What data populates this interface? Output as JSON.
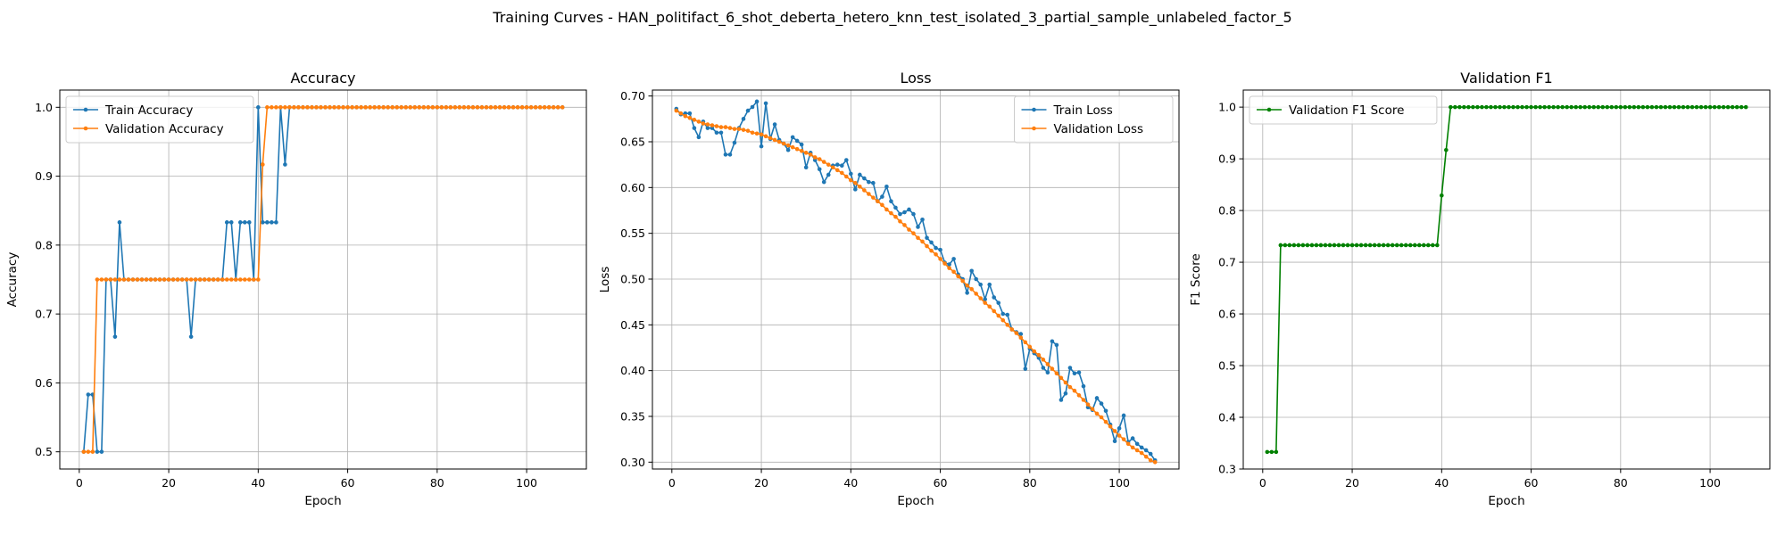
{
  "figure_title": "Training Curves - HAN_politifact_6_shot_deberta_hetero_knn_test_isolated_3_partial_sample_unlabeled_factor_5",
  "colors": {
    "train": "#1f77b4",
    "validation": "#ff7f0e",
    "f1": "#008000"
  },
  "chart_data": [
    {
      "type": "line",
      "title": "Accuracy",
      "xlabel": "Epoch",
      "ylabel": "Accuracy",
      "xlim": [
        -4.35,
        113.35
      ],
      "ylim": [
        0.475,
        1.025
      ],
      "xticks": [
        0,
        20,
        40,
        60,
        80,
        100
      ],
      "yticks": [
        0.5,
        0.6,
        0.7,
        0.8,
        0.9,
        1.0
      ],
      "ytick_decimals": 1,
      "grid": true,
      "legend": "upper left",
      "x_start": 1,
      "series": [
        {
          "name": "Train Accuracy",
          "color": "#1f77b4",
          "values": [
            0.5,
            0.583,
            0.583,
            0.5,
            0.5,
            0.75,
            0.75,
            0.667,
            0.833,
            0.75,
            0.75,
            0.75,
            0.75,
            0.75,
            0.75,
            0.75,
            0.75,
            0.75,
            0.75,
            0.75,
            0.75,
            0.75,
            0.75,
            0.75,
            0.667,
            0.75,
            0.75,
            0.75,
            0.75,
            0.75,
            0.75,
            0.75,
            0.833,
            0.833,
            0.75,
            0.833,
            0.833,
            0.833,
            0.75,
            1.0,
            0.833,
            0.833,
            0.833,
            0.833,
            1.0,
            0.917,
            1.0,
            1.0,
            1.0,
            1.0,
            1.0,
            1.0,
            1.0,
            1.0,
            1.0,
            1.0,
            1.0,
            1.0,
            1.0,
            1.0,
            1.0,
            1.0,
            1.0,
            1.0,
            1.0,
            1.0,
            1.0,
            1.0,
            1.0,
            1.0,
            1.0,
            1.0,
            1.0,
            1.0,
            1.0,
            1.0,
            1.0,
            1.0,
            1.0,
            1.0,
            1.0,
            1.0,
            1.0,
            1.0,
            1.0,
            1.0,
            1.0,
            1.0,
            1.0,
            1.0,
            1.0,
            1.0,
            1.0,
            1.0,
            1.0,
            1.0,
            1.0,
            1.0,
            1.0,
            1.0,
            1.0,
            1.0,
            1.0,
            1.0,
            1.0,
            1.0,
            1.0,
            1.0
          ]
        },
        {
          "name": "Validation Accuracy",
          "color": "#ff7f0e",
          "values": [
            0.5,
            0.5,
            0.5,
            0.75,
            0.75,
            0.75,
            0.75,
            0.75,
            0.75,
            0.75,
            0.75,
            0.75,
            0.75,
            0.75,
            0.75,
            0.75,
            0.75,
            0.75,
            0.75,
            0.75,
            0.75,
            0.75,
            0.75,
            0.75,
            0.75,
            0.75,
            0.75,
            0.75,
            0.75,
            0.75,
            0.75,
            0.75,
            0.75,
            0.75,
            0.75,
            0.75,
            0.75,
            0.75,
            0.75,
            0.75,
            0.917,
            1.0,
            1.0,
            1.0,
            1.0,
            1.0,
            1.0,
            1.0,
            1.0,
            1.0,
            1.0,
            1.0,
            1.0,
            1.0,
            1.0,
            1.0,
            1.0,
            1.0,
            1.0,
            1.0,
            1.0,
            1.0,
            1.0,
            1.0,
            1.0,
            1.0,
            1.0,
            1.0,
            1.0,
            1.0,
            1.0,
            1.0,
            1.0,
            1.0,
            1.0,
            1.0,
            1.0,
            1.0,
            1.0,
            1.0,
            1.0,
            1.0,
            1.0,
            1.0,
            1.0,
            1.0,
            1.0,
            1.0,
            1.0,
            1.0,
            1.0,
            1.0,
            1.0,
            1.0,
            1.0,
            1.0,
            1.0,
            1.0,
            1.0,
            1.0,
            1.0,
            1.0,
            1.0,
            1.0,
            1.0,
            1.0,
            1.0,
            1.0
          ]
        }
      ]
    },
    {
      "type": "line",
      "title": "Loss",
      "xlabel": "Epoch",
      "ylabel": "Loss",
      "xlim": [
        -4.35,
        113.35
      ],
      "ylim": [
        0.2925,
        0.7065
      ],
      "xticks": [
        0,
        20,
        40,
        60,
        80,
        100
      ],
      "yticks": [
        0.3,
        0.35,
        0.4,
        0.45,
        0.5,
        0.55,
        0.6,
        0.65,
        0.7
      ],
      "ytick_decimals": 2,
      "grid": true,
      "legend": "upper right",
      "x_start": 1,
      "series": [
        {
          "name": "Train Loss",
          "color": "#1f77b4",
          "values": [
            0.686,
            0.68,
            0.681,
            0.681,
            0.665,
            0.655,
            0.672,
            0.665,
            0.665,
            0.66,
            0.66,
            0.636,
            0.636,
            0.649,
            0.665,
            0.675,
            0.684,
            0.688,
            0.694,
            0.645,
            0.692,
            0.653,
            0.669,
            0.652,
            0.648,
            0.641,
            0.655,
            0.651,
            0.647,
            0.622,
            0.638,
            0.63,
            0.62,
            0.606,
            0.614,
            0.624,
            0.625,
            0.624,
            0.63,
            0.615,
            0.598,
            0.614,
            0.61,
            0.606,
            0.605,
            0.585,
            0.59,
            0.601,
            0.585,
            0.578,
            0.571,
            0.573,
            0.576,
            0.571,
            0.557,
            0.565,
            0.545,
            0.54,
            0.534,
            0.532,
            0.518,
            0.516,
            0.522,
            0.505,
            0.5,
            0.485,
            0.509,
            0.5,
            0.494,
            0.478,
            0.494,
            0.48,
            0.474,
            0.462,
            0.461,
            0.445,
            0.442,
            0.44,
            0.402,
            0.424,
            0.419,
            0.414,
            0.403,
            0.398,
            0.432,
            0.428,
            0.368,
            0.375,
            0.403,
            0.397,
            0.398,
            0.383,
            0.36,
            0.357,
            0.37,
            0.364,
            0.356,
            0.341,
            0.323,
            0.337,
            0.351,
            0.322,
            0.326,
            0.32,
            0.316,
            0.313,
            0.309,
            0.302
          ]
        },
        {
          "name": "Validation Loss",
          "color": "#ff7f0e",
          "values": [
            0.684,
            0.681,
            0.678,
            0.676,
            0.674,
            0.672,
            0.67,
            0.669,
            0.668,
            0.667,
            0.666,
            0.666,
            0.665,
            0.664,
            0.664,
            0.663,
            0.662,
            0.66,
            0.659,
            0.658,
            0.656,
            0.654,
            0.652,
            0.65,
            0.648,
            0.646,
            0.644,
            0.642,
            0.64,
            0.638,
            0.636,
            0.633,
            0.631,
            0.628,
            0.625,
            0.622,
            0.619,
            0.616,
            0.612,
            0.608,
            0.605,
            0.601,
            0.597,
            0.593,
            0.589,
            0.585,
            0.581,
            0.576,
            0.572,
            0.568,
            0.563,
            0.559,
            0.554,
            0.55,
            0.545,
            0.541,
            0.536,
            0.531,
            0.527,
            0.522,
            0.517,
            0.512,
            0.508,
            0.503,
            0.498,
            0.493,
            0.489,
            0.484,
            0.479,
            0.474,
            0.47,
            0.465,
            0.46,
            0.455,
            0.45,
            0.445,
            0.441,
            0.436,
            0.431,
            0.426,
            0.421,
            0.417,
            0.412,
            0.407,
            0.402,
            0.397,
            0.392,
            0.387,
            0.382,
            0.378,
            0.373,
            0.368,
            0.363,
            0.358,
            0.353,
            0.349,
            0.344,
            0.339,
            0.334,
            0.329,
            0.325,
            0.32,
            0.316,
            0.313,
            0.31,
            0.306,
            0.302,
            0.3
          ]
        }
      ]
    },
    {
      "type": "line",
      "title": "Validation F1",
      "xlabel": "Epoch",
      "ylabel": "F1 Score",
      "xlim": [
        -4.35,
        113.35
      ],
      "ylim": [
        0.3,
        1.033
      ],
      "xticks": [
        0,
        20,
        40,
        60,
        80,
        100
      ],
      "yticks": [
        0.3,
        0.4,
        0.5,
        0.6,
        0.7,
        0.8,
        0.9,
        1.0
      ],
      "ytick_decimals": 1,
      "grid": true,
      "legend": "upper left",
      "x_start": 1,
      "series": [
        {
          "name": "Validation F1 Score",
          "color": "#008000",
          "values": [
            0.333,
            0.333,
            0.333,
            0.733,
            0.733,
            0.733,
            0.733,
            0.733,
            0.733,
            0.733,
            0.733,
            0.733,
            0.733,
            0.733,
            0.733,
            0.733,
            0.733,
            0.733,
            0.733,
            0.733,
            0.733,
            0.733,
            0.733,
            0.733,
            0.733,
            0.733,
            0.733,
            0.733,
            0.733,
            0.733,
            0.733,
            0.733,
            0.733,
            0.733,
            0.733,
            0.733,
            0.733,
            0.733,
            0.733,
            0.829,
            0.917,
            1.0,
            1.0,
            1.0,
            1.0,
            1.0,
            1.0,
            1.0,
            1.0,
            1.0,
            1.0,
            1.0,
            1.0,
            1.0,
            1.0,
            1.0,
            1.0,
            1.0,
            1.0,
            1.0,
            1.0,
            1.0,
            1.0,
            1.0,
            1.0,
            1.0,
            1.0,
            1.0,
            1.0,
            1.0,
            1.0,
            1.0,
            1.0,
            1.0,
            1.0,
            1.0,
            1.0,
            1.0,
            1.0,
            1.0,
            1.0,
            1.0,
            1.0,
            1.0,
            1.0,
            1.0,
            1.0,
            1.0,
            1.0,
            1.0,
            1.0,
            1.0,
            1.0,
            1.0,
            1.0,
            1.0,
            1.0,
            1.0,
            1.0,
            1.0,
            1.0,
            1.0,
            1.0,
            1.0,
            1.0,
            1.0,
            1.0,
            1.0
          ]
        }
      ]
    }
  ]
}
